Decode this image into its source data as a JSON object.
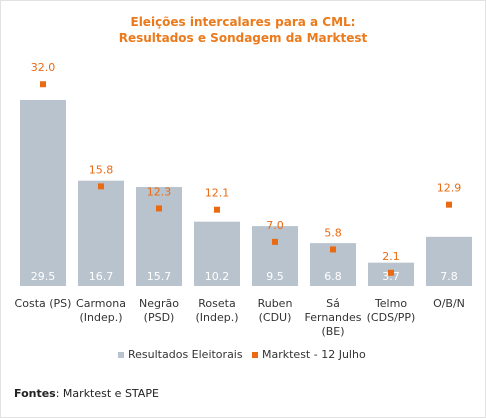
{
  "chart_data": {
    "type": "bar",
    "title_lines": [
      "Eleições intercalares para a CML:",
      "Resultados e Sondagem da Marktest"
    ],
    "categories": [
      [
        "Costa (PS)"
      ],
      [
        "Carmona",
        "(Indep.)"
      ],
      [
        "Negrão",
        "(PSD)"
      ],
      [
        "Roseta",
        "(Indep.)"
      ],
      [
        "Ruben",
        "(CDU)"
      ],
      [
        "Sá",
        "Fernandes",
        "(BE)"
      ],
      [
        "Telmo",
        "(CDS/PP)"
      ],
      [
        "O/B/N"
      ]
    ],
    "series": [
      {
        "name": "Resultados Eleitorais",
        "kind": "bar",
        "color": "#b8c3cd",
        "values": [
          29.5,
          16.7,
          15.7,
          10.2,
          9.5,
          6.8,
          3.7,
          7.8
        ],
        "value_labels": [
          "29.5",
          "16.7",
          "15.7",
          "10.2",
          "9.5",
          "6.8",
          "3.7",
          "7.8"
        ]
      },
      {
        "name": "Marktest - 12 Julho",
        "kind": "marker",
        "color": "#ea6a12",
        "values": [
          32.0,
          15.8,
          12.3,
          12.1,
          7.0,
          5.8,
          2.1,
          12.9
        ],
        "value_labels": [
          "32.0",
          "15.8",
          "12.3",
          "12.1",
          "7.0",
          "5.8",
          "2.1",
          "12.9"
        ]
      }
    ],
    "ylim": [
      0,
      34
    ],
    "grid": false,
    "legend_position": "bottom"
  },
  "sources": {
    "label": "Fontes",
    "text": ": Marktest e STAPE"
  }
}
